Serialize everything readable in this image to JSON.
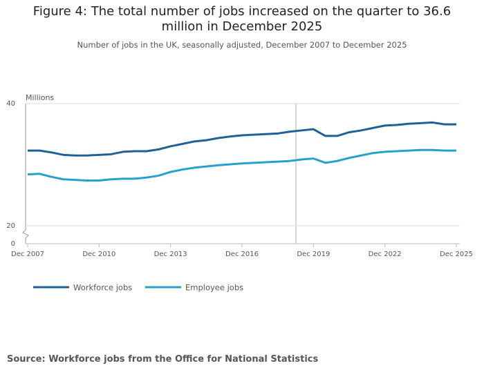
{
  "chart_data": {
    "type": "line",
    "title": "Figure 4: The total number of jobs increased on the quarter to 36.6 million in December 2025",
    "subtitle": "Number of jobs in the UK, seasonally adjusted, December 2007 to December 2025",
    "y_label": "Millions",
    "source": "Source: Workforce jobs from the Office for National Statistics",
    "x": [
      "Dec 2007",
      "Jun 2008",
      "Dec 2008",
      "Jun 2009",
      "Dec 2009",
      "Jun 2010",
      "Dec 2010",
      "Jun 2011",
      "Dec 2011",
      "Jun 2012",
      "Dec 2012",
      "Jun 2013",
      "Dec 2013",
      "Jun 2014",
      "Dec 2014",
      "Jun 2015",
      "Dec 2015",
      "Jun 2016",
      "Dec 2016",
      "Jun 2017",
      "Dec 2017",
      "Jun 2018",
      "Dec 2018",
      "Jun 2019",
      "Dec 2019",
      "Jun 2020",
      "Dec 2020",
      "Jun 2021",
      "Dec 2021",
      "Jun 2022",
      "Dec 2022",
      "Jun 2023",
      "Dec 2023",
      "Jun 2024",
      "Dec 2024",
      "Jun 2025",
      "Dec 2025"
    ],
    "series": [
      {
        "name": "Workforce jobs",
        "color": "#206095",
        "values": [
          32.3,
          32.3,
          32.0,
          31.6,
          31.5,
          31.5,
          31.6,
          31.7,
          32.1,
          32.2,
          32.2,
          32.5,
          33.0,
          33.4,
          33.8,
          34.0,
          34.35,
          34.6,
          34.8,
          34.9,
          35.0,
          35.1,
          35.4,
          35.6,
          35.8,
          34.7,
          34.7,
          35.3,
          35.6,
          36.0,
          36.4,
          36.5,
          36.7,
          36.8,
          36.9,
          36.6,
          36.6
        ]
      },
      {
        "name": "Employee jobs",
        "color": "#27a0cc",
        "values": [
          28.4,
          28.5,
          28.0,
          27.6,
          27.5,
          27.4,
          27.4,
          27.6,
          27.7,
          27.7,
          27.9,
          28.2,
          28.8,
          29.2,
          29.5,
          29.7,
          29.9,
          30.05,
          30.2,
          30.3,
          30.4,
          30.5,
          30.6,
          30.85,
          31.0,
          30.3,
          30.6,
          31.1,
          31.5,
          31.9,
          32.1,
          32.2,
          32.3,
          32.4,
          32.4,
          32.3,
          32.3
        ]
      }
    ],
    "xticks": [
      "Dec 2007",
      "Dec 2010",
      "Dec 2013",
      "Dec 2016",
      "Dec 2019",
      "Dec 2022",
      "Dec 2025"
    ],
    "ylim": [
      20,
      40
    ],
    "yticks": [
      20,
      40
    ],
    "y_break_tick": 0,
    "grid": true
  }
}
